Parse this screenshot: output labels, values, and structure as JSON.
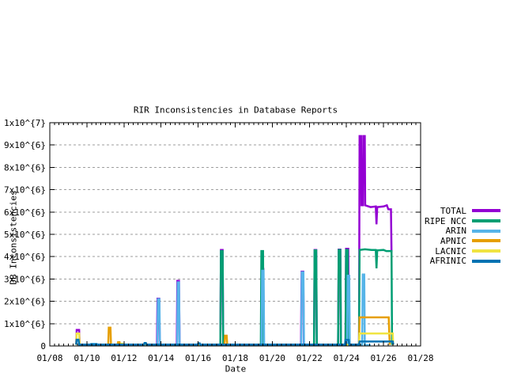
{
  "chart_data": {
    "type": "line",
    "title": "RIR Inconsistencies in Database Reports",
    "xlabel": "Date",
    "ylabel": "DB Inconsistencies",
    "grid": "horizontal dashed gridlines at each 1x10^6, full border box with inward tick marks",
    "legend_position": "outside right, vertically centered",
    "x_range": [
      8,
      28
    ],
    "x_unit": "January date (MM/DD)",
    "x_major_step": 2,
    "x_minor_step": 0.25,
    "x_tick_days": [
      8,
      10,
      12,
      14,
      16,
      18,
      20,
      22,
      24,
      26,
      28
    ],
    "x_tick_labels": [
      "01/08",
      "01/10",
      "01/12",
      "01/14",
      "01/16",
      "01/18",
      "01/20",
      "01/22",
      "01/24",
      "01/26",
      "01/28"
    ],
    "y_max_millions": 10,
    "y_values_in": "millions (1 = 1x10^6 inconsistencies)",
    "y_tick_labels": [
      "0",
      "1x10^{6}",
      "2x10^{6}",
      "3x10^{6}",
      "4x10^{6}",
      "5x10^{6}",
      "6x10^{6}",
      "7x10^{6}",
      "8x10^{6}",
      "9x10^{6}",
      "1x10^{7}"
    ],
    "series": [
      {
        "name": "TOTAL",
        "color": "#9400D3",
        "points": [
          [
            9.42,
            0.06
          ],
          [
            9.45,
            0.72
          ],
          [
            9.58,
            0.72
          ],
          [
            9.61,
            0.06
          ],
          [
            13.78,
            0.06
          ],
          [
            13.81,
            2.12
          ],
          [
            13.9,
            2.12
          ],
          [
            13.93,
            0.06
          ],
          [
            14.85,
            0.06
          ],
          [
            14.88,
            2.92
          ],
          [
            14.97,
            2.92
          ],
          [
            15.0,
            0.06
          ],
          [
            17.2,
            0.06
          ],
          [
            17.23,
            4.3
          ],
          [
            17.32,
            4.3
          ],
          [
            17.35,
            0.06
          ],
          [
            19.4,
            0.06
          ],
          [
            19.43,
            3.45
          ],
          [
            19.52,
            3.45
          ],
          [
            19.55,
            0.06
          ],
          [
            21.55,
            0.06
          ],
          [
            21.58,
            3.33
          ],
          [
            21.67,
            3.33
          ],
          [
            21.7,
            0.06
          ],
          [
            22.25,
            0.06
          ],
          [
            22.28,
            4.3
          ],
          [
            22.37,
            4.3
          ],
          [
            22.4,
            0.06
          ],
          [
            23.55,
            0.06
          ],
          [
            23.58,
            4.32
          ],
          [
            23.67,
            4.32
          ],
          [
            23.7,
            0.06
          ],
          [
            23.95,
            0.06
          ],
          [
            23.98,
            4.35
          ],
          [
            24.1,
            4.35
          ],
          [
            24.13,
            0.06
          ],
          [
            24.68,
            0.06
          ],
          [
            24.71,
            9.4
          ],
          [
            24.79,
            9.4
          ],
          [
            24.81,
            6.3
          ],
          [
            24.89,
            6.3
          ],
          [
            24.91,
            9.4
          ],
          [
            24.99,
            9.4
          ],
          [
            25.01,
            6.3
          ],
          [
            25.3,
            6.22
          ],
          [
            25.58,
            6.25
          ],
          [
            25.62,
            5.45
          ],
          [
            25.66,
            6.22
          ],
          [
            26.0,
            6.25
          ],
          [
            26.18,
            6.3
          ],
          [
            26.26,
            6.12
          ],
          [
            26.4,
            6.12
          ],
          [
            26.43,
            4.2
          ],
          [
            26.47,
            4.2
          ]
        ]
      },
      {
        "name": "RIPE NCC",
        "color": "#009E73",
        "points": [
          [
            17.2,
            0.05
          ],
          [
            17.23,
            4.25
          ],
          [
            17.32,
            4.25
          ],
          [
            17.35,
            0.05
          ],
          [
            19.38,
            0.05
          ],
          [
            19.41,
            4.25
          ],
          [
            19.5,
            4.25
          ],
          [
            19.53,
            0.05
          ],
          [
            22.25,
            0.05
          ],
          [
            22.28,
            4.28
          ],
          [
            22.37,
            4.28
          ],
          [
            22.4,
            0.05
          ],
          [
            23.55,
            0.05
          ],
          [
            23.58,
            4.3
          ],
          [
            23.67,
            4.3
          ],
          [
            23.7,
            0.05
          ],
          [
            23.95,
            0.05
          ],
          [
            23.98,
            4.3
          ],
          [
            24.07,
            4.3
          ],
          [
            24.1,
            0.05
          ],
          [
            24.68,
            0.05
          ],
          [
            24.71,
            4.3
          ],
          [
            25.0,
            4.33
          ],
          [
            25.35,
            4.3
          ],
          [
            25.58,
            4.3
          ],
          [
            25.62,
            3.48
          ],
          [
            25.66,
            4.28
          ],
          [
            26.0,
            4.3
          ],
          [
            26.15,
            4.25
          ],
          [
            26.43,
            4.25
          ],
          [
            26.46,
            0.05
          ]
        ]
      },
      {
        "name": "ARIN",
        "color": "#56B4E9",
        "points": [
          [
            9.6,
            0.04
          ],
          [
            10.2,
            0.04
          ],
          [
            10.23,
            0.1
          ],
          [
            10.53,
            0.1
          ],
          [
            10.56,
            0.04
          ],
          [
            13.08,
            0.04
          ],
          [
            13.11,
            0.09
          ],
          [
            13.2,
            0.09
          ],
          [
            13.23,
            0.04
          ],
          [
            13.8,
            0.04
          ],
          [
            13.83,
            2.1
          ],
          [
            13.91,
            2.1
          ],
          [
            13.94,
            0.04
          ],
          [
            14.87,
            0.04
          ],
          [
            14.9,
            2.85
          ],
          [
            14.97,
            2.85
          ],
          [
            15.0,
            0.04
          ],
          [
            19.42,
            0.04
          ],
          [
            19.45,
            3.37
          ],
          [
            19.53,
            3.37
          ],
          [
            19.56,
            0.04
          ],
          [
            21.56,
            0.04
          ],
          [
            21.59,
            3.3
          ],
          [
            21.68,
            3.3
          ],
          [
            21.71,
            0.04
          ],
          [
            24.04,
            0.04
          ],
          [
            24.07,
            3.15
          ],
          [
            24.15,
            3.15
          ],
          [
            24.18,
            0.04
          ],
          [
            24.85,
            0.04
          ],
          [
            24.88,
            3.2
          ],
          [
            24.96,
            3.2
          ],
          [
            24.99,
            0.04
          ],
          [
            25.3,
            0.04
          ]
        ]
      },
      {
        "name": "APNIC",
        "color": "#E69F00",
        "points": [
          [
            11.15,
            0.05
          ],
          [
            11.18,
            0.82
          ],
          [
            11.27,
            0.82
          ],
          [
            11.3,
            0.05
          ],
          [
            11.65,
            0.05
          ],
          [
            11.68,
            0.17
          ],
          [
            11.76,
            0.17
          ],
          [
            11.79,
            0.05
          ],
          [
            17.42,
            0.05
          ],
          [
            17.45,
            0.46
          ],
          [
            17.54,
            0.46
          ],
          [
            17.57,
            0.05
          ],
          [
            24.68,
            0.05
          ],
          [
            24.71,
            1.28
          ],
          [
            26.28,
            1.28
          ],
          [
            26.31,
            0.52
          ],
          [
            26.34,
            0.05
          ]
        ]
      },
      {
        "name": "LACNIC",
        "color": "#F0E442",
        "points": [
          [
            9.42,
            0.05
          ],
          [
            9.45,
            0.56
          ],
          [
            9.58,
            0.56
          ],
          [
            9.61,
            0.05
          ],
          [
            11.82,
            0.05
          ],
          [
            11.85,
            0.1
          ],
          [
            11.93,
            0.1
          ],
          [
            11.96,
            0.05
          ],
          [
            24.68,
            0.05
          ],
          [
            24.71,
            0.56
          ],
          [
            26.5,
            0.56
          ],
          [
            26.52,
            0.05
          ]
        ]
      },
      {
        "name": "AFRINIC",
        "color": "#0072B2",
        "points": [
          [
            9.42,
            0.06
          ],
          [
            9.45,
            0.28
          ],
          [
            9.55,
            0.28
          ],
          [
            9.58,
            0.06
          ],
          [
            13.08,
            0.06
          ],
          [
            13.11,
            0.13
          ],
          [
            13.18,
            0.13
          ],
          [
            13.21,
            0.06
          ],
          [
            15.98,
            0.06
          ],
          [
            16.01,
            0.12
          ],
          [
            16.08,
            0.12
          ],
          [
            16.11,
            0.06
          ],
          [
            23.92,
            0.06
          ],
          [
            23.95,
            0.27
          ],
          [
            24.12,
            0.27
          ],
          [
            24.15,
            0.06
          ],
          [
            24.68,
            0.06
          ],
          [
            24.71,
            0.2
          ],
          [
            26.5,
            0.2
          ],
          [
            26.53,
            0.06
          ]
        ]
      }
    ]
  }
}
